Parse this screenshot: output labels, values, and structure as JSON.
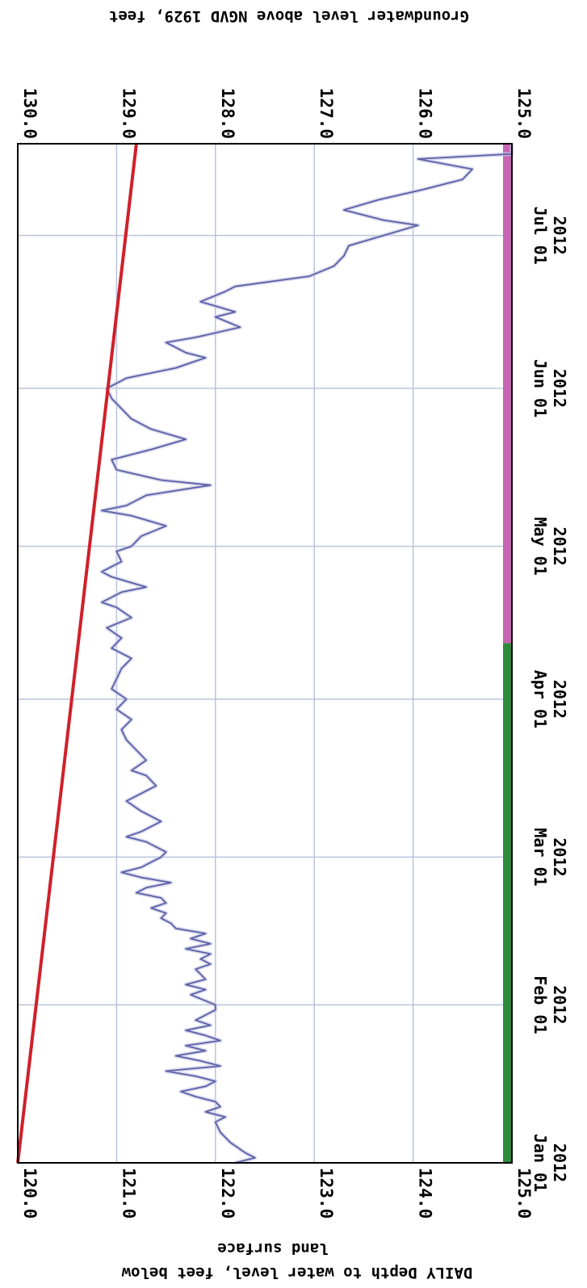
{
  "chart_data": {
    "type": "line",
    "orientation_note_hidden": "",
    "left_axis_title_line1": "DAILY Depth to water level, feet below",
    "left_axis_title_line2": "land surface",
    "right_axis_title": "Groundwater level above NGVD 1929, feet",
    "depth_ticks": [
      "120.0",
      "121.0",
      "122.0",
      "123.0",
      "124.0",
      "125.0"
    ],
    "depth_range": [
      120.0,
      125.0
    ],
    "elevation_ticks": [
      "130.0",
      "129.0",
      "128.0",
      "127.0",
      "126.0",
      "125.0"
    ],
    "elevation_range": [
      130.0,
      125.0
    ],
    "date_ticks": [
      {
        "line1": "Jan 01",
        "line2": "2012",
        "date": "2012-01-01"
      },
      {
        "line1": "Feb 01",
        "line2": "2012",
        "date": "2012-02-01"
      },
      {
        "line1": "Mar 01",
        "line2": "2012",
        "date": "2012-03-01"
      },
      {
        "line1": "Apr 01",
        "line2": "2012",
        "date": "2012-04-01"
      },
      {
        "line1": "May 01",
        "line2": "2012",
        "date": "2012-05-01"
      },
      {
        "line1": "Jun 01",
        "line2": "2012",
        "date": "2012-06-01"
      },
      {
        "line1": "Jul 01",
        "line2": "2012",
        "date": "2012-07-01"
      }
    ],
    "x_range": [
      "2012-01-01",
      "2012-07-19"
    ],
    "grid": true,
    "colors": {
      "series": "#5b5fa6",
      "trend": "#d0202a",
      "approved_bar": "#2e8b3a",
      "provisional_bar": "#c864b4",
      "grid": "#b8c4dc"
    },
    "series": [
      {
        "type": "daily_depth",
        "points": [
          [
            "2012-01-01",
            122.2
          ],
          [
            "2012-01-02",
            122.4
          ],
          [
            "2012-01-03",
            122.3
          ],
          [
            "2012-01-05",
            122.15
          ],
          [
            "2012-01-07",
            122.05
          ],
          [
            "2012-01-09",
            122.0
          ],
          [
            "2012-01-10",
            122.1
          ],
          [
            "2012-01-11",
            121.9
          ],
          [
            "2012-01-12",
            122.05
          ],
          [
            "2012-01-13",
            122.0
          ],
          [
            "2012-01-14",
            121.8
          ],
          [
            "2012-01-15",
            121.65
          ],
          [
            "2012-01-16",
            121.9
          ],
          [
            "2012-01-17",
            122.0
          ],
          [
            "2012-01-18",
            121.8
          ],
          [
            "2012-01-19",
            121.5
          ],
          [
            "2012-01-20",
            122.05
          ],
          [
            "2012-01-21",
            121.85
          ],
          [
            "2012-01-22",
            121.6
          ],
          [
            "2012-01-23",
            121.9
          ],
          [
            "2012-01-24",
            121.7
          ],
          [
            "2012-01-25",
            122.05
          ],
          [
            "2012-01-26",
            121.9
          ],
          [
            "2012-01-27",
            121.7
          ],
          [
            "2012-01-28",
            121.95
          ],
          [
            "2012-01-29",
            121.8
          ],
          [
            "2012-01-31",
            122.0
          ],
          [
            "2012-02-01",
            122.0
          ],
          [
            "2012-02-03",
            121.75
          ],
          [
            "2012-02-04",
            121.9
          ],
          [
            "2012-02-05",
            121.7
          ],
          [
            "2012-02-06",
            121.9
          ],
          [
            "2012-02-08",
            121.8
          ],
          [
            "2012-02-09",
            121.95
          ],
          [
            "2012-02-10",
            121.85
          ],
          [
            "2012-02-11",
            121.95
          ],
          [
            "2012-02-12",
            121.7
          ],
          [
            "2012-02-13",
            121.95
          ],
          [
            "2012-02-14",
            121.75
          ],
          [
            "2012-02-15",
            121.9
          ],
          [
            "2012-02-16",
            121.6
          ],
          [
            "2012-02-17",
            121.55
          ],
          [
            "2012-02-18",
            121.45
          ],
          [
            "2012-02-19",
            121.5
          ],
          [
            "2012-02-20",
            121.35
          ],
          [
            "2012-02-21",
            121.5
          ],
          [
            "2012-02-22",
            121.45
          ],
          [
            "2012-02-23",
            121.2
          ],
          [
            "2012-02-24",
            121.3
          ],
          [
            "2012-02-25",
            121.55
          ],
          [
            "2012-02-26",
            121.25
          ],
          [
            "2012-02-27",
            121.05
          ],
          [
            "2012-02-28",
            121.25
          ],
          [
            "2012-02-29",
            121.35
          ],
          [
            "2012-03-01",
            121.45
          ],
          [
            "2012-03-02",
            121.5
          ],
          [
            "2012-03-04",
            121.3
          ],
          [
            "2012-03-05",
            121.1
          ],
          [
            "2012-03-06",
            121.25
          ],
          [
            "2012-03-08",
            121.45
          ],
          [
            "2012-03-10",
            121.25
          ],
          [
            "2012-03-12",
            121.1
          ],
          [
            "2012-03-13",
            121.2
          ],
          [
            "2012-03-15",
            121.4
          ],
          [
            "2012-03-17",
            121.3
          ],
          [
            "2012-03-18",
            121.15
          ],
          [
            "2012-03-20",
            121.3
          ],
          [
            "2012-03-22",
            121.2
          ],
          [
            "2012-03-24",
            121.1
          ],
          [
            "2012-03-26",
            121.05
          ],
          [
            "2012-03-28",
            121.15
          ],
          [
            "2012-03-30",
            121.0
          ],
          [
            "2012-04-01",
            121.1
          ],
          [
            "2012-04-03",
            120.95
          ],
          [
            "2012-04-05",
            121.0
          ],
          [
            "2012-04-07",
            121.05
          ],
          [
            "2012-04-09",
            121.15
          ],
          [
            "2012-04-11",
            120.95
          ],
          [
            "2012-04-13",
            121.05
          ],
          [
            "2012-04-15",
            120.9
          ],
          [
            "2012-04-17",
            121.15
          ],
          [
            "2012-04-19",
            121.0
          ],
          [
            "2012-04-20",
            120.85
          ],
          [
            "2012-04-22",
            121.05
          ],
          [
            "2012-04-23",
            121.3
          ],
          [
            "2012-04-25",
            120.95
          ],
          [
            "2012-04-26",
            120.85
          ],
          [
            "2012-04-28",
            121.05
          ],
          [
            "2012-04-30",
            121.0
          ],
          [
            "2012-05-01",
            121.15
          ],
          [
            "2012-05-03",
            121.25
          ],
          [
            "2012-05-05",
            121.5
          ],
          [
            "2012-05-07",
            121.15
          ],
          [
            "2012-05-08",
            120.85
          ],
          [
            "2012-05-09",
            121.1
          ],
          [
            "2012-05-11",
            121.3
          ],
          [
            "2012-05-13",
            121.95
          ],
          [
            "2012-05-14",
            121.45
          ],
          [
            "2012-05-16",
            121.0
          ],
          [
            "2012-05-18",
            120.95
          ],
          [
            "2012-05-20",
            121.35
          ],
          [
            "2012-05-22",
            121.7
          ],
          [
            "2012-05-24",
            121.35
          ],
          [
            "2012-05-26",
            121.15
          ],
          [
            "2012-05-28",
            121.05
          ],
          [
            "2012-05-30",
            120.95
          ],
          [
            "2012-06-01",
            120.9
          ],
          [
            "2012-06-03",
            121.1
          ],
          [
            "2012-06-05",
            121.6
          ],
          [
            "2012-06-07",
            121.9
          ],
          [
            "2012-06-08",
            121.7
          ],
          [
            "2012-06-10",
            121.5
          ],
          [
            "2012-06-11",
            121.8
          ],
          [
            "2012-06-13",
            122.25
          ],
          [
            "2012-06-15",
            122.0
          ],
          [
            "2012-06-16",
            122.2
          ],
          [
            "2012-06-18",
            121.85
          ],
          [
            "2012-06-20",
            122.1
          ],
          [
            "2012-06-21",
            122.2
          ],
          [
            "2012-06-23",
            122.95
          ],
          [
            "2012-06-25",
            123.2
          ],
          [
            "2012-06-27",
            123.3
          ],
          [
            "2012-06-29",
            123.35
          ],
          [
            "2012-07-01",
            123.7
          ],
          [
            "2012-07-03",
            124.05
          ],
          [
            "2012-07-04",
            123.7
          ],
          [
            "2012-07-06",
            123.3
          ],
          [
            "2012-07-08",
            123.65
          ],
          [
            "2012-07-10",
            124.1
          ],
          [
            "2012-07-12",
            124.5
          ],
          [
            "2012-07-14",
            124.6
          ],
          [
            "2012-07-16",
            124.05
          ],
          [
            "2012-07-17",
            125.0
          ],
          [
            "2012-07-19",
            125.0
          ]
        ]
      },
      {
        "type": "trend_line",
        "points": [
          [
            "2012-01-01",
            120.0
          ],
          [
            "2012-07-19",
            121.2
          ]
        ]
      }
    ],
    "status_bars": [
      {
        "type": "approved",
        "start": "2012-01-01",
        "end": "2012-04-12"
      },
      {
        "type": "provisional",
        "start": "2012-04-12",
        "end": "2012-07-19"
      }
    ]
  }
}
